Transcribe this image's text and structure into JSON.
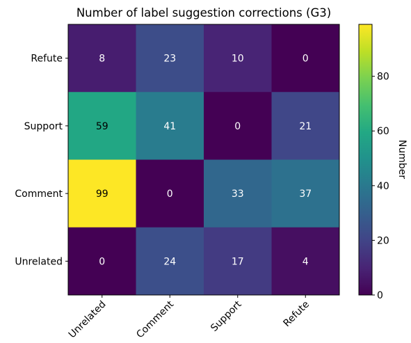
{
  "chart_data": {
    "type": "heatmap",
    "title": "Number of label suggestion corrections (G3)",
    "row_labels": [
      "Refute",
      "Support",
      "Comment",
      "Unrelated"
    ],
    "col_labels": [
      "Unrelated",
      "Comment",
      "Support",
      "Refute"
    ],
    "values": [
      [
        8,
        23,
        10,
        0
      ],
      [
        59,
        41,
        0,
        21
      ],
      [
        99,
        0,
        33,
        37
      ],
      [
        0,
        24,
        17,
        4
      ]
    ],
    "colormap": "viridis",
    "vmin": 0,
    "vmax": 99,
    "colorbar": {
      "label": "Number",
      "ticks": [
        0,
        20,
        40,
        60,
        80
      ],
      "tick_labels": [
        "0",
        "20",
        "40",
        "60",
        "80"
      ]
    },
    "light_text_color": "#ffffff",
    "dark_text_color": "#000000"
  }
}
